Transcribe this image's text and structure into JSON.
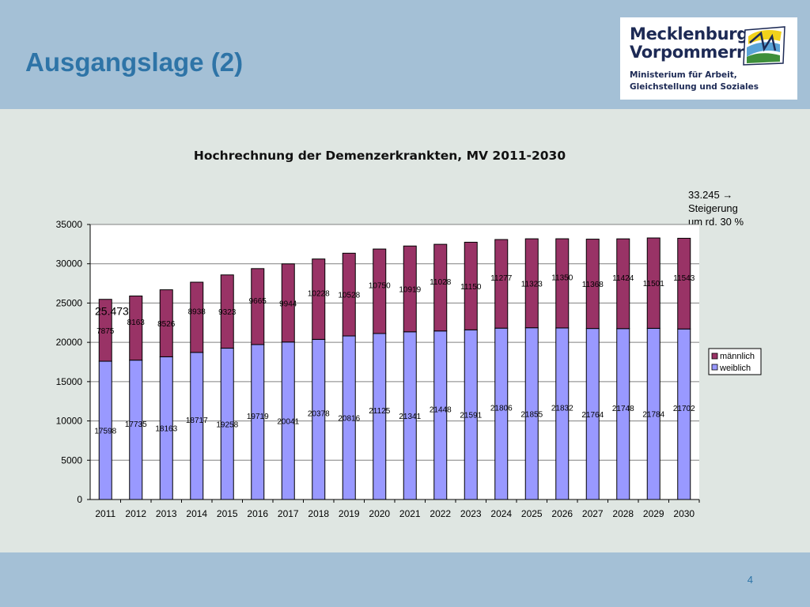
{
  "slide": {
    "title": "Ausgangslage (2)",
    "page_number": "4"
  },
  "logo": {
    "name_line1": "Mecklenburg",
    "name_line2": "Vorpommern",
    "sub_line1": "Ministerium für Arbeit,",
    "sub_line2": "Gleichstellung und Soziales"
  },
  "annotations": {
    "start_value": "25.473",
    "end_line1": "33.245 →",
    "end_line2": "Steigerung",
    "end_line3": "um rd. 30 %"
  },
  "colors": {
    "weiblich": "#9999ff",
    "maennlich": "#993366",
    "title": "#2e74a7"
  },
  "chart_data": {
    "type": "bar",
    "stacked": true,
    "title": "Hochrechnung der Demenzerkrankten, MV 2011-2030",
    "categories": [
      "2011",
      "2012",
      "2013",
      "2014",
      "2015",
      "2016",
      "2017",
      "2018",
      "2019",
      "2020",
      "2021",
      "2022",
      "2023",
      "2024",
      "2025",
      "2026",
      "2027",
      "2028",
      "2029",
      "2030"
    ],
    "series": [
      {
        "name": "weiblich",
        "values": [
          17598,
          17735,
          18163,
          18717,
          19258,
          19719,
          20041,
          20378,
          20816,
          21125,
          21341,
          21448,
          21591,
          21806,
          21855,
          21832,
          21764,
          21748,
          21784,
          21702
        ]
      },
      {
        "name": "männlich",
        "values": [
          7875,
          8163,
          8526,
          8938,
          9323,
          9665,
          9944,
          10228,
          10528,
          10750,
          10919,
          11028,
          11150,
          11277,
          11323,
          11350,
          11368,
          11424,
          11501,
          11543
        ]
      }
    ],
    "y_ticks": [
      "0",
      "5000",
      "10000",
      "15000",
      "20000",
      "25000",
      "30000",
      "35000"
    ],
    "ylim": [
      0,
      35000
    ],
    "grid": true,
    "legend": "right"
  }
}
